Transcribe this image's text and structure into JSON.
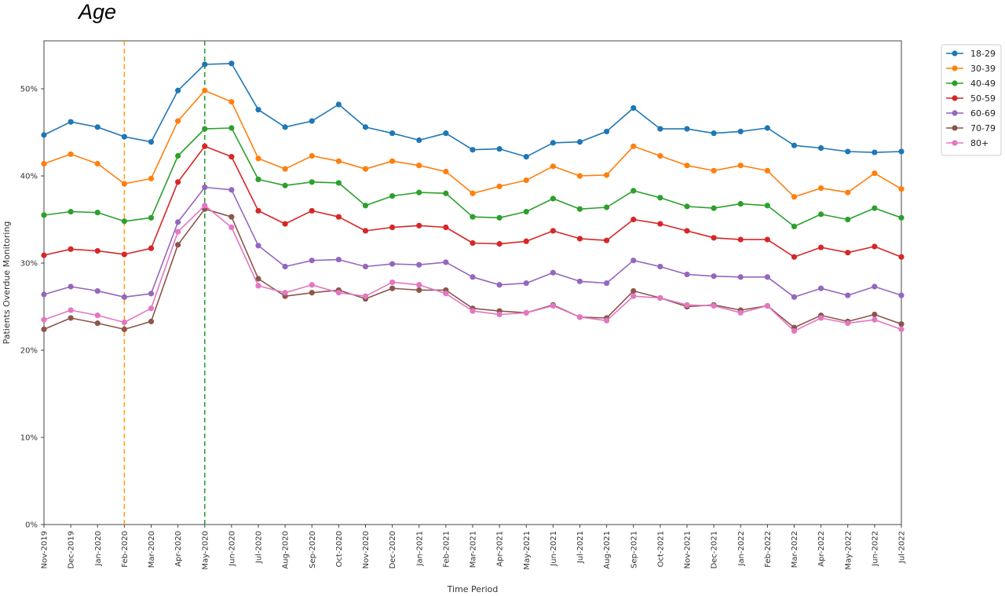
{
  "page_title": "Age",
  "chart_data": {
    "type": "line",
    "title": "",
    "xlabel": "Time Period",
    "ylabel": "Patients Overdue Monitoring",
    "ylim": [
      0,
      0.555
    ],
    "yticks": [
      0,
      0.1,
      0.2,
      0.3,
      0.4,
      0.5
    ],
    "ytick_labels": [
      "0%",
      "10%",
      "20%",
      "30%",
      "40%",
      "50%"
    ],
    "grid": false,
    "legend_position": "outside-top-right",
    "categories": [
      "Nov-2019",
      "Dec-2019",
      "Jan-2020",
      "Feb-2020",
      "Mar-2020",
      "Apr-2020",
      "May-2020",
      "Jun-2020",
      "Jul-2020",
      "Aug-2020",
      "Sep-2020",
      "Oct-2020",
      "Nov-2020",
      "Dec-2020",
      "Jan-2021",
      "Feb-2021",
      "Mar-2021",
      "Apr-2021",
      "May-2021",
      "Jun-2021",
      "Jul-2021",
      "Aug-2021",
      "Sep-2021",
      "Oct-2021",
      "Nov-2021",
      "Dec-2021",
      "Jan-2022",
      "Feb-2022",
      "Mar-2022",
      "Apr-2022",
      "May-2022",
      "Jun-2022",
      "Jul-2022"
    ],
    "vlines": [
      {
        "at": "Feb-2020",
        "color": "#ff9f1c"
      },
      {
        "at": "May-2020",
        "color": "#2ca02c"
      }
    ],
    "series": [
      {
        "name": "18-29",
        "color": "#1f77b4",
        "values": [
          0.447,
          0.462,
          0.456,
          0.445,
          0.439,
          0.498,
          0.528,
          0.529,
          0.476,
          0.456,
          0.463,
          0.482,
          0.456,
          0.449,
          0.441,
          0.449,
          0.43,
          0.431,
          0.422,
          0.438,
          0.439,
          0.451,
          0.478,
          0.454,
          0.454,
          0.449,
          0.451,
          0.455,
          0.435,
          0.432,
          0.428,
          0.427,
          0.428
        ]
      },
      {
        "name": "30-39",
        "color": "#ff7f0e",
        "values": [
          0.414,
          0.425,
          0.414,
          0.391,
          0.397,
          0.463,
          0.498,
          0.485,
          0.42,
          0.408,
          0.423,
          0.417,
          0.408,
          0.417,
          0.412,
          0.405,
          0.38,
          0.388,
          0.395,
          0.411,
          0.4,
          0.401,
          0.434,
          0.423,
          0.412,
          0.406,
          0.412,
          0.406,
          0.376,
          0.386,
          0.381,
          0.403,
          0.385
        ]
      },
      {
        "name": "40-49",
        "color": "#2ca02c",
        "values": [
          0.355,
          0.359,
          0.358,
          0.348,
          0.352,
          0.423,
          0.454,
          0.455,
          0.396,
          0.389,
          0.393,
          0.392,
          0.366,
          0.377,
          0.381,
          0.38,
          0.353,
          0.352,
          0.359,
          0.374,
          0.362,
          0.364,
          0.383,
          0.375,
          0.365,
          0.363,
          0.368,
          0.366,
          0.342,
          0.356,
          0.35,
          0.363,
          0.352
        ]
      },
      {
        "name": "50-59",
        "color": "#d62728",
        "values": [
          0.309,
          0.316,
          0.314,
          0.31,
          0.317,
          0.393,
          0.434,
          0.422,
          0.36,
          0.345,
          0.36,
          0.353,
          0.337,
          0.341,
          0.343,
          0.341,
          0.323,
          0.322,
          0.325,
          0.337,
          0.328,
          0.326,
          0.35,
          0.345,
          0.337,
          0.329,
          0.327,
          0.327,
          0.307,
          0.318,
          0.312,
          0.319,
          0.307
        ]
      },
      {
        "name": "60-69",
        "color": "#9467bd",
        "values": [
          0.264,
          0.273,
          0.268,
          0.261,
          0.265,
          0.347,
          0.387,
          0.384,
          0.32,
          0.296,
          0.303,
          0.304,
          0.296,
          0.299,
          0.298,
          0.301,
          0.284,
          0.275,
          0.277,
          0.289,
          0.279,
          0.277,
          0.303,
          0.296,
          0.287,
          0.285,
          0.284,
          0.284,
          0.261,
          0.271,
          0.263,
          0.273,
          0.263
        ]
      },
      {
        "name": "70-79",
        "color": "#8c564b",
        "values": [
          0.224,
          0.237,
          0.231,
          0.224,
          0.233,
          0.321,
          0.362,
          0.353,
          0.282,
          0.262,
          0.266,
          0.269,
          0.259,
          0.271,
          0.269,
          0.269,
          0.248,
          0.245,
          0.243,
          0.252,
          0.238,
          0.237,
          0.268,
          0.26,
          0.25,
          0.252,
          0.246,
          0.251,
          0.226,
          0.24,
          0.233,
          0.241,
          0.23
        ]
      },
      {
        "name": "80+",
        "color": "#e377c2",
        "values": [
          0.235,
          0.246,
          0.24,
          0.232,
          0.248,
          0.336,
          0.366,
          0.341,
          0.274,
          0.266,
          0.275,
          0.266,
          0.262,
          0.278,
          0.275,
          0.265,
          0.245,
          0.241,
          0.243,
          0.251,
          0.238,
          0.234,
          0.262,
          0.26,
          0.252,
          0.251,
          0.243,
          0.251,
          0.222,
          0.237,
          0.231,
          0.235,
          0.224
        ]
      }
    ]
  }
}
